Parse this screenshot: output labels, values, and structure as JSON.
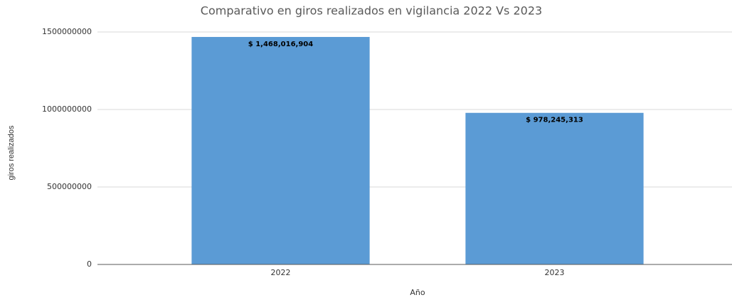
{
  "chart_data": {
    "type": "bar",
    "title": "Comparativo en giros realizados en vigilancia 2022 Vs 2023",
    "xlabel": "Año",
    "ylabel": "giros realizados",
    "categories": [
      "2022",
      "2023"
    ],
    "values": [
      1468016904,
      978245313
    ],
    "value_labels": [
      "$ 1,468,016,904",
      "$ 978,245,313"
    ],
    "color": "#5b9bd5",
    "ylim": [
      0,
      1500000000
    ],
    "yticks": [
      0,
      500000000,
      1000000000,
      1500000000
    ],
    "grid": true
  }
}
